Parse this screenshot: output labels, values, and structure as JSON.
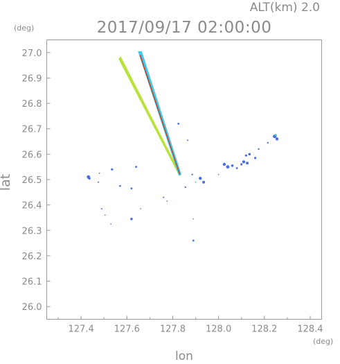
{
  "header": {
    "altitude_label": "ALT(km)  2.0",
    "datetime": "2017/09/17 02:00:00"
  },
  "chart_data": {
    "type": "scatter",
    "title": "2017/09/17 02:00:00",
    "subtitle": "ALT(km)  2.0",
    "xlabel": "lon",
    "ylabel": "lat",
    "x_unit": "(deg)",
    "y_unit": "(deg)",
    "xlim": [
      127.25,
      128.45
    ],
    "ylim": [
      25.95,
      27.05
    ],
    "x_ticks": [
      127.4,
      127.6,
      127.8,
      128.0,
      128.2,
      128.4
    ],
    "x_tick_labels": [
      "127.4",
      "127.6",
      "127.8",
      "128.0",
      "128.2",
      "128.4"
    ],
    "y_ticks": [
      26.0,
      26.1,
      26.2,
      26.3,
      26.4,
      26.5,
      26.6,
      26.7,
      26.8,
      26.9,
      27.0
    ],
    "y_tick_labels": [
      "26.0",
      "26.1",
      "26.2",
      "26.3",
      "26.4",
      "26.5",
      "26.6",
      "26.7",
      "26.8",
      "26.9",
      "27.0"
    ],
    "grid": false,
    "colors": {
      "frame": "#9a9a9a",
      "echo_weak": "#4a6ee0",
      "echo_cyan": "#3fc8e8",
      "echo_green": "#8ee04a",
      "echo_yellow": "#d8e040",
      "echo_red": "#d03a1a"
    },
    "beams": [
      {
        "name": "beam-left",
        "color": "#b8e23c",
        "polygon": [
          [
            127.563,
            26.975
          ],
          [
            127.573,
            26.985
          ],
          [
            127.836,
            26.52
          ],
          [
            127.829,
            26.513
          ]
        ]
      },
      {
        "name": "beam-right",
        "color": "#3fc8e8",
        "polygon": [
          [
            127.648,
            27.005
          ],
          [
            127.665,
            27.005
          ],
          [
            127.838,
            26.52
          ],
          [
            127.826,
            26.516
          ]
        ]
      },
      {
        "name": "beam-core",
        "color": "#d03a1a",
        "polygon": [
          [
            127.655,
            26.99
          ],
          [
            127.66,
            26.99
          ],
          [
            127.833,
            26.52
          ],
          [
            127.829,
            26.52
          ]
        ]
      }
    ],
    "points": [
      {
        "lon": 127.432,
        "lat": 26.51,
        "size": 2.4,
        "color": "#4a6ee0"
      },
      {
        "lon": 127.436,
        "lat": 26.505,
        "size": 1.8,
        "color": "#4a6ee0"
      },
      {
        "lon": 127.475,
        "lat": 26.49,
        "size": 1.0,
        "color": "#4a6ee0"
      },
      {
        "lon": 127.48,
        "lat": 26.525,
        "size": 0.9,
        "color": "#4a6ee0"
      },
      {
        "lon": 127.535,
        "lat": 26.54,
        "size": 1.6,
        "color": "#4a6ee0"
      },
      {
        "lon": 127.57,
        "lat": 26.475,
        "size": 1.3,
        "color": "#4a6ee0"
      },
      {
        "lon": 127.62,
        "lat": 26.465,
        "size": 1.4,
        "color": "#4a6ee0"
      },
      {
        "lon": 127.64,
        "lat": 26.55,
        "size": 1.4,
        "color": "#4a6ee0"
      },
      {
        "lon": 127.49,
        "lat": 26.385,
        "size": 1.0,
        "color": "#4a6ee0"
      },
      {
        "lon": 127.505,
        "lat": 26.36,
        "size": 0.8,
        "color": "#4a6ee0"
      },
      {
        "lon": 127.53,
        "lat": 26.325,
        "size": 0.8,
        "color": "#4a6ee0"
      },
      {
        "lon": 127.62,
        "lat": 26.345,
        "size": 1.8,
        "color": "#4a6ee0"
      },
      {
        "lon": 127.66,
        "lat": 26.385,
        "size": 0.8,
        "color": "#4a6ee0"
      },
      {
        "lon": 127.76,
        "lat": 26.43,
        "size": 1.0,
        "color": "#4a6ee0"
      },
      {
        "lon": 127.775,
        "lat": 26.415,
        "size": 0.8,
        "color": "#4a6ee0"
      },
      {
        "lon": 127.855,
        "lat": 26.47,
        "size": 1.2,
        "color": "#4a6ee0"
      },
      {
        "lon": 127.885,
        "lat": 26.52,
        "size": 1.2,
        "color": "#4a6ee0"
      },
      {
        "lon": 127.92,
        "lat": 26.505,
        "size": 2.2,
        "color": "#4a6ee0"
      },
      {
        "lon": 127.935,
        "lat": 26.49,
        "size": 2.0,
        "color": "#4a6ee0"
      },
      {
        "lon": 127.89,
        "lat": 26.345,
        "size": 0.8,
        "color": "#4a6ee0"
      },
      {
        "lon": 127.89,
        "lat": 26.26,
        "size": 1.4,
        "color": "#4a6ee0"
      },
      {
        "lon": 127.825,
        "lat": 26.72,
        "size": 1.4,
        "color": "#4a6ee0"
      },
      {
        "lon": 127.865,
        "lat": 26.655,
        "size": 1.0,
        "color": "#4a6ee0"
      },
      {
        "lon": 128.025,
        "lat": 26.56,
        "size": 2.2,
        "color": "#4a6ee0"
      },
      {
        "lon": 128.04,
        "lat": 26.55,
        "size": 2.4,
        "color": "#4a6ee0"
      },
      {
        "lon": 128.06,
        "lat": 26.555,
        "size": 1.8,
        "color": "#4a6ee0"
      },
      {
        "lon": 128.08,
        "lat": 26.545,
        "size": 1.4,
        "color": "#4a6ee0"
      },
      {
        "lon": 128.1,
        "lat": 26.56,
        "size": 1.6,
        "color": "#4a6ee0"
      },
      {
        "lon": 128.11,
        "lat": 26.57,
        "size": 2.2,
        "color": "#4a6ee0"
      },
      {
        "lon": 128.125,
        "lat": 26.565,
        "size": 2.0,
        "color": "#4a6ee0"
      },
      {
        "lon": 128.12,
        "lat": 26.595,
        "size": 1.6,
        "color": "#4a6ee0"
      },
      {
        "lon": 128.135,
        "lat": 26.6,
        "size": 1.8,
        "color": "#4a6ee0"
      },
      {
        "lon": 128.16,
        "lat": 26.585,
        "size": 1.6,
        "color": "#4a6ee0"
      },
      {
        "lon": 128.175,
        "lat": 26.62,
        "size": 1.2,
        "color": "#4a6ee0"
      },
      {
        "lon": 128.215,
        "lat": 26.645,
        "size": 1.2,
        "color": "#4a6ee0"
      },
      {
        "lon": 128.245,
        "lat": 26.67,
        "size": 2.6,
        "color": "#4a6ee0"
      },
      {
        "lon": 128.255,
        "lat": 26.66,
        "size": 2.2,
        "color": "#4a6ee0"
      },
      {
        "lon": 128.25,
        "lat": 26.675,
        "size": 1.6,
        "color": "#3fc8e8"
      },
      {
        "lon": 128.0,
        "lat": 26.52,
        "size": 0.8,
        "color": "#4a6ee0"
      },
      {
        "lon": 127.9,
        "lat": 26.49,
        "size": 1.0,
        "color": "#3fc8e8"
      }
    ]
  }
}
